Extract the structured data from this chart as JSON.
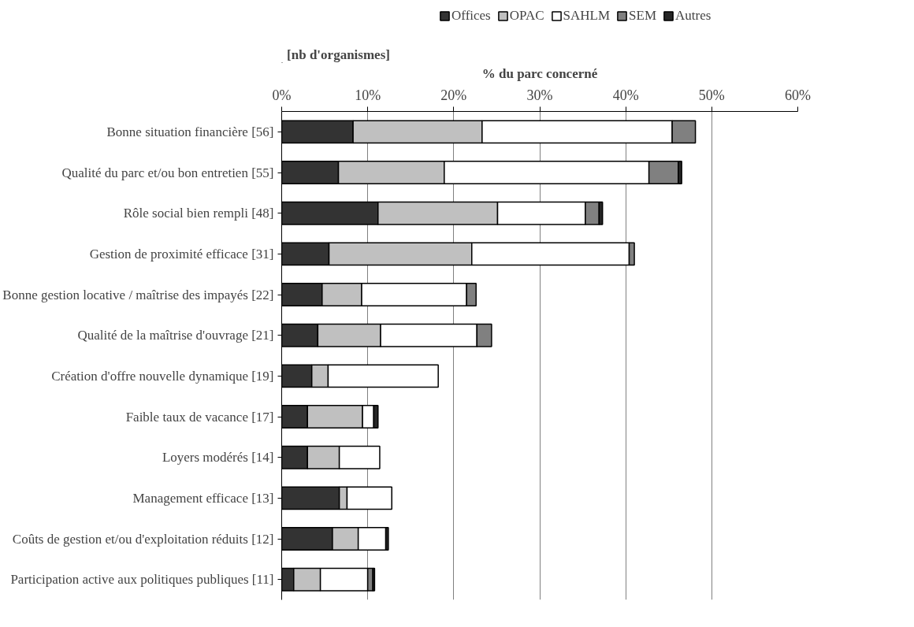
{
  "chart_data": {
    "type": "bar",
    "orientation": "horizontal",
    "stacked": true,
    "xlabel": "% du parc concerné",
    "annotations": [
      "[nb d'organismes]"
    ],
    "categories": [
      "Bonne situation financière [56]",
      "Qualité du parc et/ou bon entretien [55]",
      "Rôle social bien rempli [48]",
      "Gestion de proximité efficace [31]",
      "Bonne gestion locative / maîtrise des impayés [22]",
      "Qualité de la maîtrise d'ouvrage [21]",
      "Création d'offre nouvelle dynamique [19]",
      "Faible taux de vacance [17]",
      "Loyers modérés [14]",
      "Management efficace [13]",
      "Coûts de gestion et/ou d'exploitation réduits [12]",
      "Participation active aux politiques publiques [11]"
    ],
    "series": [
      {
        "name": "Offices",
        "color": "#333333",
        "values": [
          8.3,
          6.6,
          11.2,
          5.5,
          4.7,
          4.2,
          3.5,
          3.0,
          3.0,
          6.7,
          5.9,
          1.4
        ]
      },
      {
        "name": "OPAC",
        "color": "#c0c0c0",
        "values": [
          15.0,
          12.3,
          13.9,
          16.6,
          4.6,
          7.3,
          1.9,
          6.4,
          3.7,
          0.9,
          3.0,
          3.1
        ]
      },
      {
        "name": "SAHLM",
        "color": "#ffffff",
        "values": [
          22.1,
          23.8,
          10.2,
          18.3,
          12.2,
          11.2,
          12.8,
          1.3,
          4.7,
          5.2,
          3.2,
          5.5
        ]
      },
      {
        "name": "SEM",
        "color": "#808080",
        "values": [
          2.7,
          3.4,
          1.6,
          0.6,
          1.1,
          1.7,
          0,
          0,
          0,
          0,
          0,
          0.6
        ]
      },
      {
        "name": "Autres",
        "color": "#262626",
        "values": [
          0,
          0.4,
          0.4,
          0,
          0,
          0,
          0,
          0.5,
          0,
          0,
          0.3,
          0.2
        ]
      }
    ],
    "xlim": [
      0,
      60
    ],
    "xticks": [
      {
        "value": 0,
        "label": "0%"
      },
      {
        "value": 10,
        "label": "10%"
      },
      {
        "value": 20,
        "label": "20%"
      },
      {
        "value": 30,
        "label": "30%"
      },
      {
        "value": 40,
        "label": "40%"
      },
      {
        "value": 50,
        "label": "50%"
      },
      {
        "value": 60,
        "label": "60%"
      }
    ],
    "grid": "x",
    "legend": "top"
  }
}
